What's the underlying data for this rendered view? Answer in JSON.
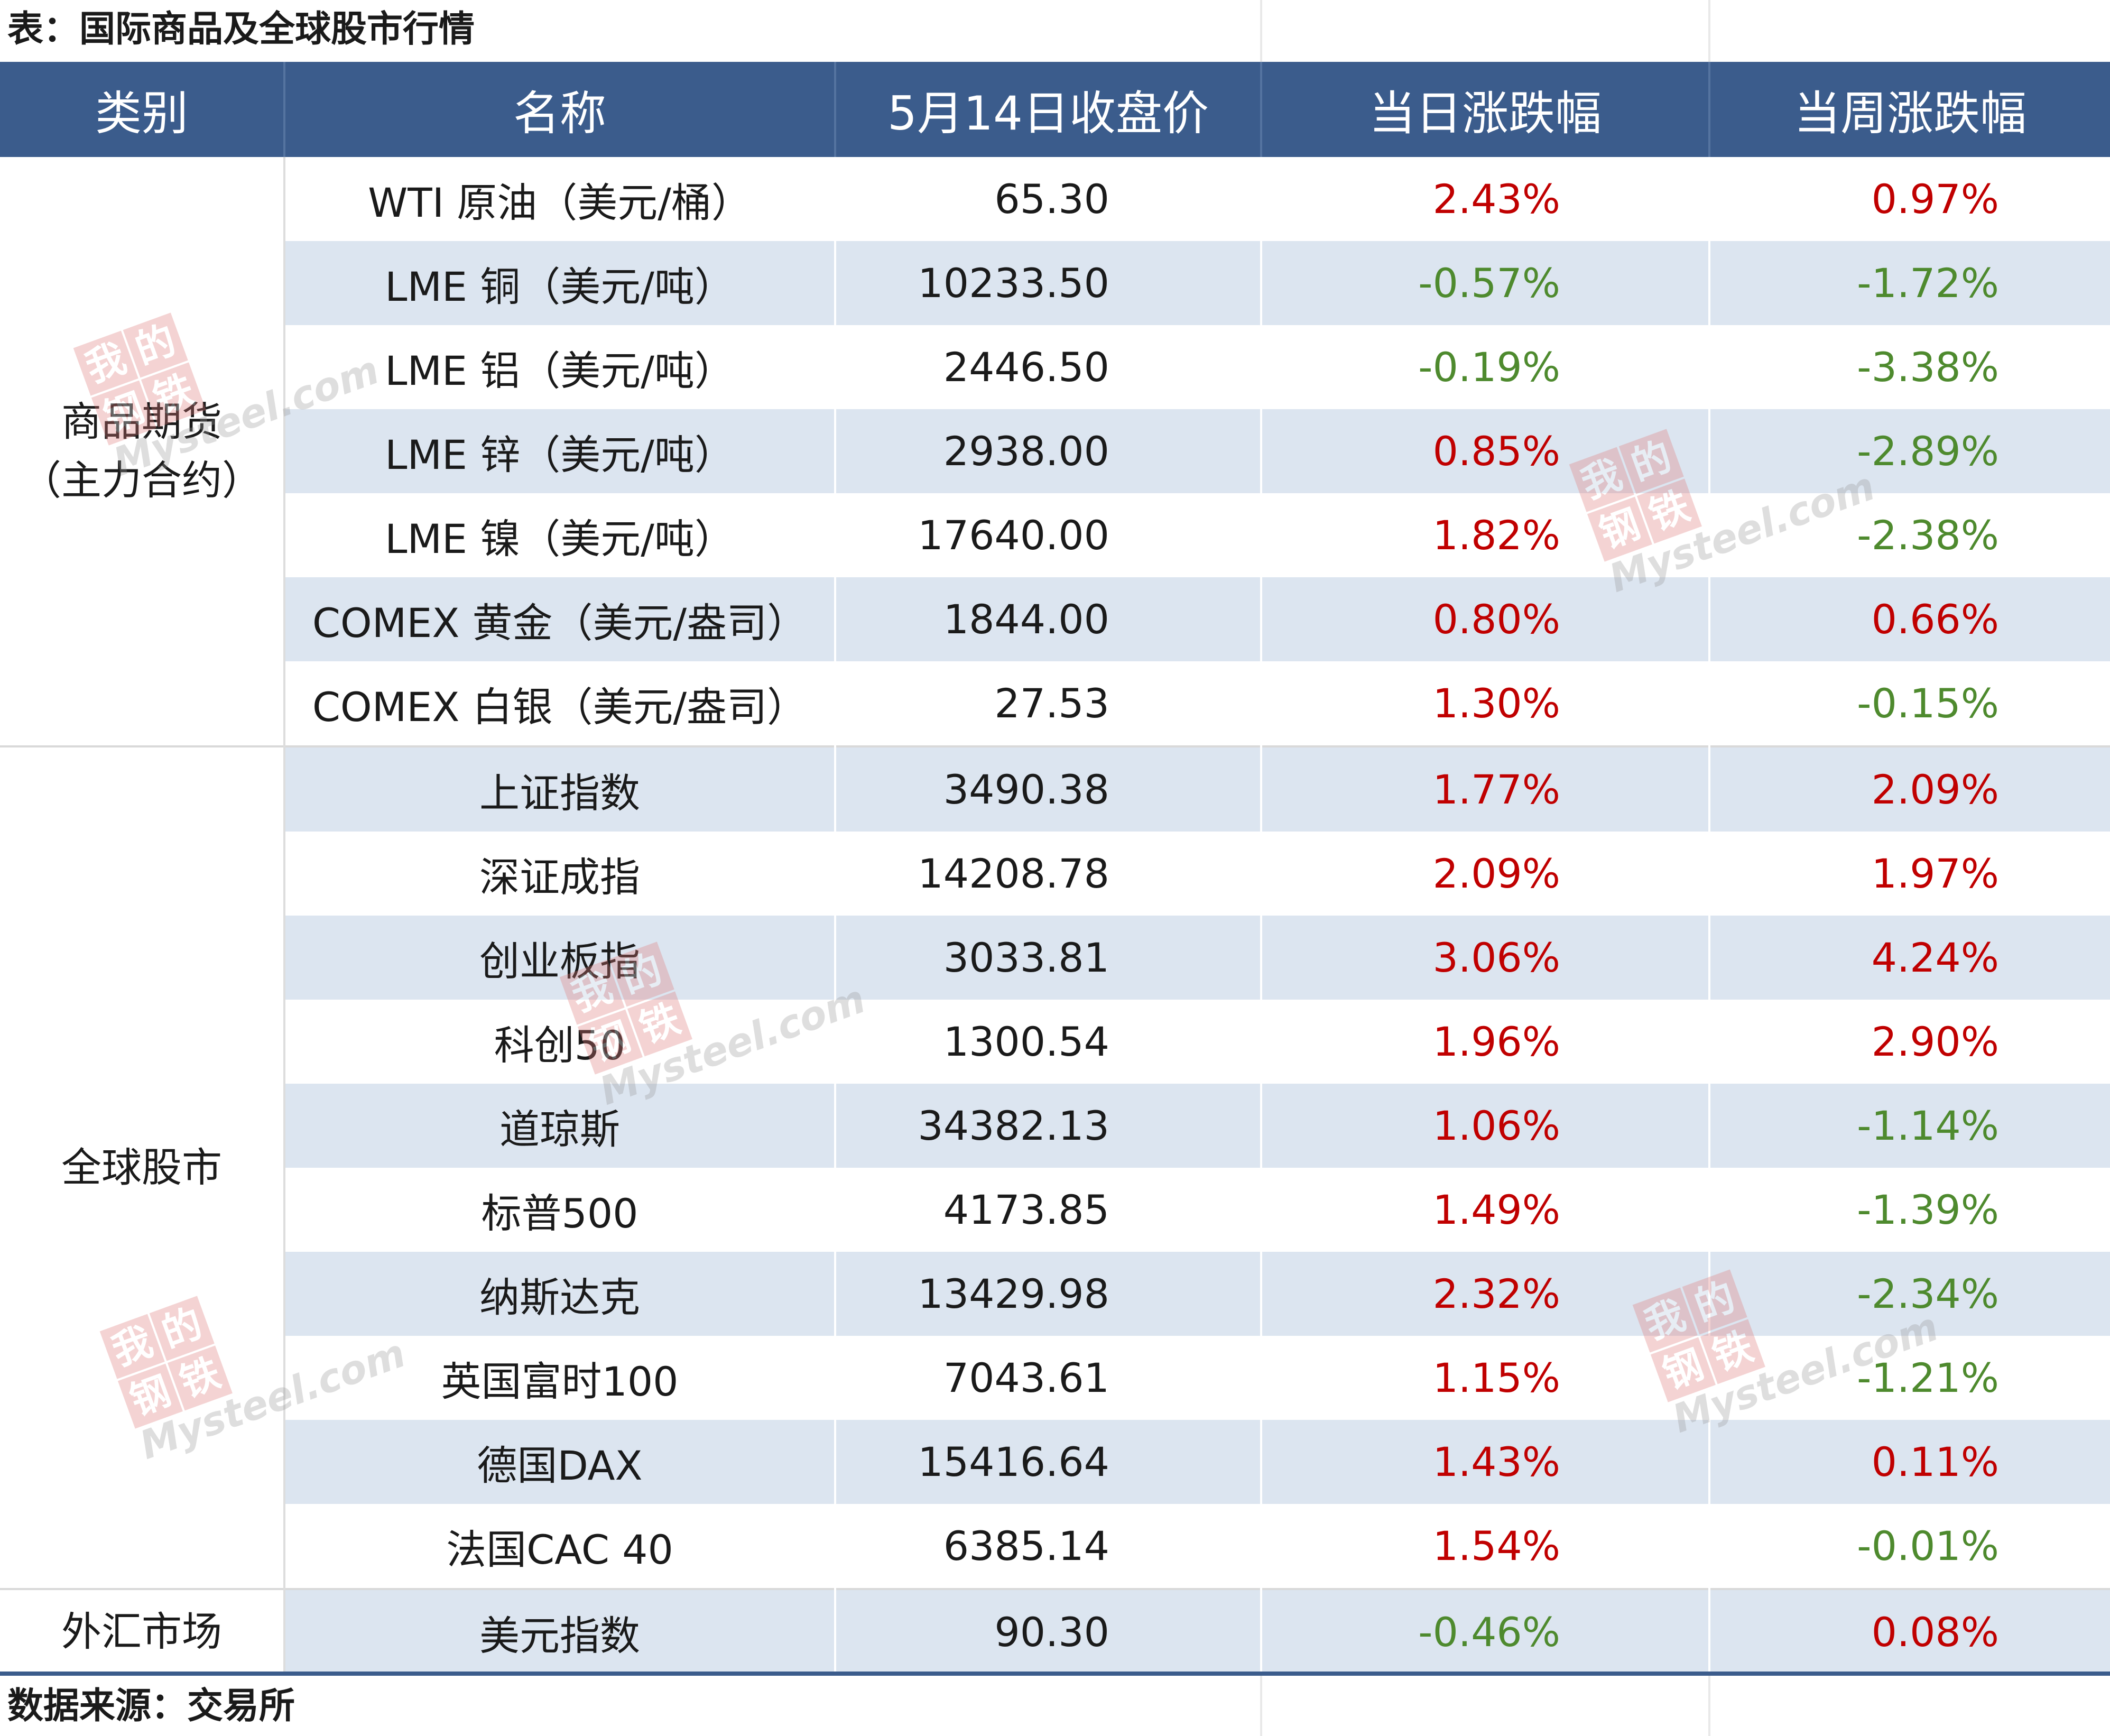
{
  "caption": "表：国际商品及全球股市行情",
  "headers": [
    "类别",
    "名称",
    "5月14日收盘价",
    "当日涨跌幅",
    "当周涨跌幅"
  ],
  "groups": [
    {
      "category_line1": "商品期货",
      "category_line2": "（主力合约）",
      "rows": [
        {
          "name": "WTI 原油（美元/桶）",
          "close": "65.30",
          "day": "2.43%",
          "week": "0.97%"
        },
        {
          "name": "LME 铜（美元/吨）",
          "close": "10233.50",
          "day": "-0.57%",
          "week": "-1.72%"
        },
        {
          "name": "LME 铝（美元/吨）",
          "close": "2446.50",
          "day": "-0.19%",
          "week": "-3.38%"
        },
        {
          "name": "LME 锌（美元/吨）",
          "close": "2938.00",
          "day": "0.85%",
          "week": "-2.89%"
        },
        {
          "name": "LME 镍（美元/吨）",
          "close": "17640.00",
          "day": "1.82%",
          "week": "-2.38%"
        },
        {
          "name": "COMEX 黄金（美元/盎司）",
          "close": "1844.00",
          "day": "0.80%",
          "week": "0.66%"
        },
        {
          "name": "COMEX 白银（美元/盎司）",
          "close": "27.53",
          "day": "1.30%",
          "week": "-0.15%"
        }
      ]
    },
    {
      "category_line1": "全球股市",
      "category_line2": "",
      "rows": [
        {
          "name": "上证指数",
          "close": "3490.38",
          "day": "1.77%",
          "week": "2.09%"
        },
        {
          "name": "深证成指",
          "close": "14208.78",
          "day": "2.09%",
          "week": "1.97%"
        },
        {
          "name": "创业板指",
          "close": "3033.81",
          "day": "3.06%",
          "week": "4.24%"
        },
        {
          "name": "科创50",
          "close": "1300.54",
          "day": "1.96%",
          "week": "2.90%"
        },
        {
          "name": "道琼斯",
          "close": "34382.13",
          "day": "1.06%",
          "week": "-1.14%"
        },
        {
          "name": "标普500",
          "close": "4173.85",
          "day": "1.49%",
          "week": "-1.39%"
        },
        {
          "name": "纳斯达克",
          "close": "13429.98",
          "day": "2.32%",
          "week": "-2.34%"
        },
        {
          "name": "英国富时100",
          "close": "7043.61",
          "day": "1.15%",
          "week": "-1.21%"
        },
        {
          "name": "德国DAX",
          "close": "15416.64",
          "day": "1.43%",
          "week": "0.11%"
        },
        {
          "name": "法国CAC 40",
          "close": "6385.14",
          "day": "1.54%",
          "week": "-0.01%"
        }
      ]
    },
    {
      "category_line1": "外汇市场",
      "category_line2": "",
      "rows": [
        {
          "name": "美元指数",
          "close": "90.30",
          "day": "-0.46%",
          "week": "0.08%"
        }
      ]
    }
  ],
  "source": "数据来源：交易所",
  "watermark": {
    "chars": [
      "我",
      "的",
      "钢",
      "铁"
    ],
    "site": "Mysteel.com"
  },
  "colors": {
    "header_bg": "#3b5c8c",
    "row_shade": "#dce5f0",
    "up": "#c00000",
    "down": "#4e8a2e"
  }
}
